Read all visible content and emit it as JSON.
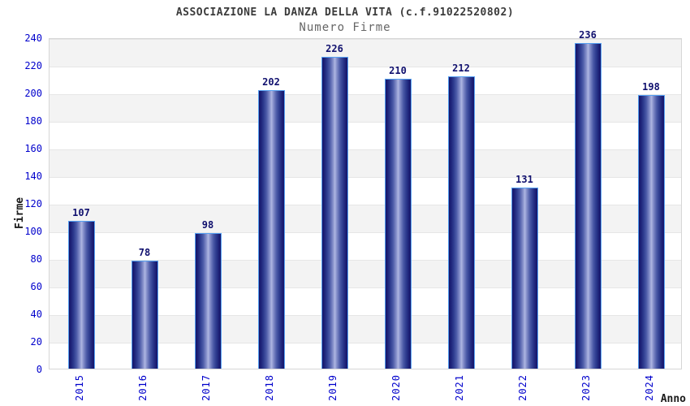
{
  "chart": {
    "title": "ASSOCIAZIONE LA DANZA DELLA VITA (c.f.91022520802)",
    "subtitle": "Numero Firme",
    "xlabel": "Anno",
    "ylabel": "Firme"
  },
  "chart_data": {
    "type": "bar",
    "title": "ASSOCIAZIONE LA DANZA DELLA VITA (c.f.91022520802)",
    "subtitle": "Numero Firme",
    "xlabel": "Anno",
    "ylabel": "Firme",
    "categories": [
      "2015",
      "2016",
      "2017",
      "2018",
      "2019",
      "2020",
      "2021",
      "2022",
      "2023",
      "2024"
    ],
    "values": [
      107,
      78,
      98,
      202,
      226,
      210,
      212,
      131,
      236,
      198
    ],
    "ylim": [
      0,
      240
    ],
    "yticks": [
      0,
      20,
      40,
      60,
      80,
      100,
      120,
      140,
      160,
      180,
      200,
      220,
      240
    ],
    "grid": "horizontal alternating bands",
    "legend": "none",
    "colors": {
      "bar_edge": "#15156a",
      "bar_center": "#aeb6e2",
      "bar_border": "#55a0f2",
      "tick_text": "#0000cc",
      "value_label": "#10106e",
      "band_gray": "#f3f3f3",
      "band_white": "#ffffff",
      "gridline": "#e6e6e6",
      "title_text": "#3b3b3b",
      "subtitle_text": "#666666"
    }
  }
}
